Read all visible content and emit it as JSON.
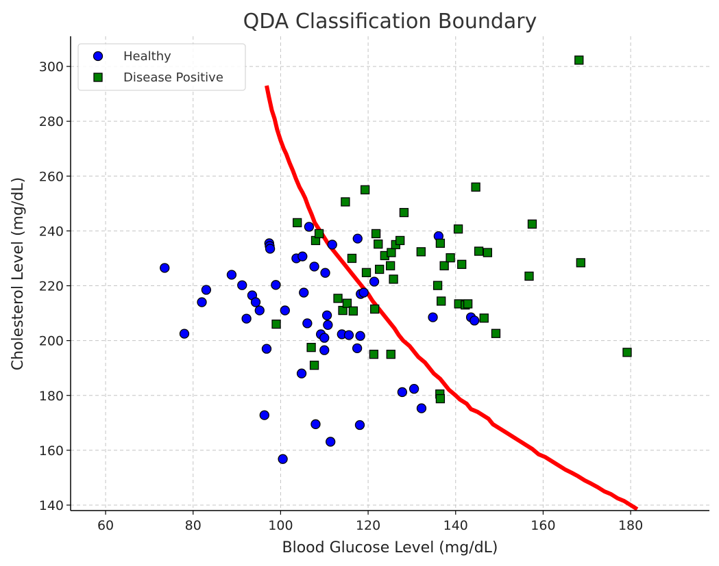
{
  "chart_data": {
    "type": "scatter",
    "title": "QDA Classification Boundary",
    "xlabel": "Blood Glucose Level (mg/dL)",
    "ylabel": "Cholesterol Level (mg/dL)",
    "xlim": [
      52,
      198
    ],
    "ylim": [
      138,
      311
    ],
    "x_ticks": [
      60,
      80,
      100,
      120,
      140,
      160,
      180
    ],
    "y_ticks": [
      140,
      160,
      180,
      200,
      220,
      240,
      260,
      280,
      300
    ],
    "grid": true,
    "legend_position": "top-left",
    "series": [
      {
        "name": "Healthy",
        "marker": "circle",
        "color": "#0000ff",
        "points": [
          [
            73.5,
            226.5
          ],
          [
            78,
            202.5
          ],
          [
            82,
            214
          ],
          [
            83,
            218.5
          ],
          [
            88.8,
            224
          ],
          [
            91.2,
            220.2
          ],
          [
            92.2,
            208
          ],
          [
            93.5,
            216.5
          ],
          [
            94.3,
            214
          ],
          [
            95.2,
            211
          ],
          [
            96.3,
            172.8
          ],
          [
            96.8,
            197
          ],
          [
            97.4,
            235.5
          ],
          [
            97.5,
            234.5
          ],
          [
            97.6,
            233.5
          ],
          [
            98.9,
            220.3
          ],
          [
            100.5,
            156.8
          ],
          [
            101,
            211
          ],
          [
            103.6,
            230
          ],
          [
            104.8,
            188
          ],
          [
            105,
            230.7
          ],
          [
            105.3,
            217.5
          ],
          [
            106.1,
            206.3
          ],
          [
            106.5,
            241.5
          ],
          [
            107.7,
            227
          ],
          [
            108,
            169.5
          ],
          [
            109.2,
            202.3
          ],
          [
            110,
            201
          ],
          [
            110,
            196.5
          ],
          [
            110.2,
            224.7
          ],
          [
            110.6,
            209.2
          ],
          [
            110.8,
            205.7
          ],
          [
            111.4,
            163.1
          ],
          [
            111.8,
            235
          ],
          [
            114,
            202.3
          ],
          [
            115.6,
            202
          ],
          [
            117.5,
            197.2
          ],
          [
            117.6,
            237.2
          ],
          [
            118.1,
            169.2
          ],
          [
            118.2,
            201.7
          ],
          [
            118.3,
            217
          ],
          [
            119,
            217.5
          ],
          [
            121.4,
            221.5
          ],
          [
            127.8,
            181.2
          ],
          [
            130.5,
            182.4
          ],
          [
            132.2,
            175.3
          ],
          [
            134.8,
            208.5
          ],
          [
            136.1,
            238.1
          ],
          [
            143.5,
            208.5
          ],
          [
            144.3,
            207.3
          ]
        ]
      },
      {
        "name": "Disease Positive",
        "marker": "square",
        "color": "#008000",
        "points": [
          [
            103.8,
            243
          ],
          [
            107.7,
            191
          ],
          [
            108,
            236.5
          ],
          [
            108.8,
            239
          ],
          [
            107,
            197.5
          ],
          [
            99,
            206
          ],
          [
            113.1,
            215.4
          ],
          [
            114.2,
            211
          ],
          [
            114.8,
            250.6
          ],
          [
            115.2,
            213.6
          ],
          [
            116.3,
            230
          ],
          [
            116.6,
            210.8
          ],
          [
            119.3,
            255
          ],
          [
            119.6,
            224.8
          ],
          [
            121.3,
            195
          ],
          [
            121.5,
            211.5
          ],
          [
            121.8,
            239
          ],
          [
            122.3,
            235.2
          ],
          [
            122.6,
            226
          ],
          [
            123.8,
            231
          ],
          [
            125.1,
            227.3
          ],
          [
            125.3,
            232.1
          ],
          [
            125.2,
            195
          ],
          [
            125.8,
            222.4
          ],
          [
            126.3,
            235
          ],
          [
            127.3,
            236.5
          ],
          [
            128.2,
            246.7
          ],
          [
            132.1,
            232.4
          ],
          [
            135.9,
            220.1
          ],
          [
            136.4,
            180.5
          ],
          [
            136.5,
            178.8
          ],
          [
            136.5,
            235.5
          ],
          [
            136.7,
            214.4
          ],
          [
            137.4,
            227.3
          ],
          [
            138.8,
            230.2
          ],
          [
            140.6,
            240.7
          ],
          [
            140.7,
            213.4
          ],
          [
            141.4,
            227.8
          ],
          [
            142.2,
            213
          ],
          [
            142.8,
            213.4
          ],
          [
            144.6,
            256
          ],
          [
            145.3,
            232.6
          ],
          [
            146.5,
            208.2
          ],
          [
            147.3,
            232.1
          ],
          [
            149.2,
            202.6
          ],
          [
            156.8,
            223.5
          ],
          [
            157.5,
            242.5
          ],
          [
            168.2,
            302.3
          ],
          [
            168.6,
            228.4
          ],
          [
            179.2,
            195.7
          ]
        ]
      }
    ],
    "boundary": {
      "color": "#ff0000",
      "points": [
        [
          96.8,
          293
        ],
        [
          97.3,
          289
        ],
        [
          98,
          284
        ],
        [
          98.6,
          281
        ],
        [
          99.2,
          277
        ],
        [
          100,
          273
        ],
        [
          100.7,
          270
        ],
        [
          101.3,
          268
        ],
        [
          102,
          265
        ],
        [
          102.8,
          262
        ],
        [
          103.5,
          259
        ],
        [
          104.3,
          256
        ],
        [
          105,
          254
        ],
        [
          105.6,
          252
        ],
        [
          106.3,
          249
        ],
        [
          107.1,
          246
        ],
        [
          107.8,
          243
        ],
        [
          108.6,
          241
        ],
        [
          109.4,
          239
        ],
        [
          110.2,
          237
        ],
        [
          111,
          235
        ],
        [
          112,
          233
        ],
        [
          113,
          231
        ],
        [
          114,
          229
        ],
        [
          115,
          227
        ],
        [
          116,
          225
        ],
        [
          117,
          223
        ],
        [
          118,
          221
        ],
        [
          119,
          219
        ],
        [
          120,
          217
        ],
        [
          121,
          214.5
        ],
        [
          122,
          212.5
        ],
        [
          123,
          210.5
        ],
        [
          124,
          208.5
        ],
        [
          125,
          206.5
        ],
        [
          126,
          204.5
        ],
        [
          127,
          202
        ],
        [
          128,
          200
        ],
        [
          129.5,
          198
        ],
        [
          130.5,
          196
        ],
        [
          131.5,
          194
        ],
        [
          133,
          192
        ],
        [
          134,
          190
        ],
        [
          135,
          188
        ],
        [
          136.5,
          186
        ],
        [
          137.5,
          184
        ],
        [
          138.5,
          182
        ],
        [
          140,
          180
        ],
        [
          141,
          178.5
        ],
        [
          142.5,
          177
        ],
        [
          143.5,
          175
        ],
        [
          145,
          174
        ],
        [
          146,
          173
        ],
        [
          147.5,
          171.5
        ],
        [
          148.5,
          169.5
        ],
        [
          150,
          168
        ],
        [
          151.5,
          166.5
        ],
        [
          153,
          165
        ],
        [
          154.5,
          163.5
        ],
        [
          156,
          162
        ],
        [
          157.5,
          160.5
        ],
        [
          159,
          158.5
        ],
        [
          160.5,
          157.5
        ],
        [
          162,
          156
        ],
        [
          163.5,
          154.5
        ],
        [
          165,
          153
        ],
        [
          166.5,
          151.8
        ],
        [
          168,
          150.5
        ],
        [
          169.5,
          149
        ],
        [
          171,
          147.8
        ],
        [
          172.5,
          146.5
        ],
        [
          174,
          145
        ],
        [
          175.5,
          144
        ],
        [
          177,
          142.5
        ],
        [
          178.5,
          141.5
        ],
        [
          180,
          140
        ],
        [
          181.5,
          138.5
        ]
      ]
    }
  }
}
